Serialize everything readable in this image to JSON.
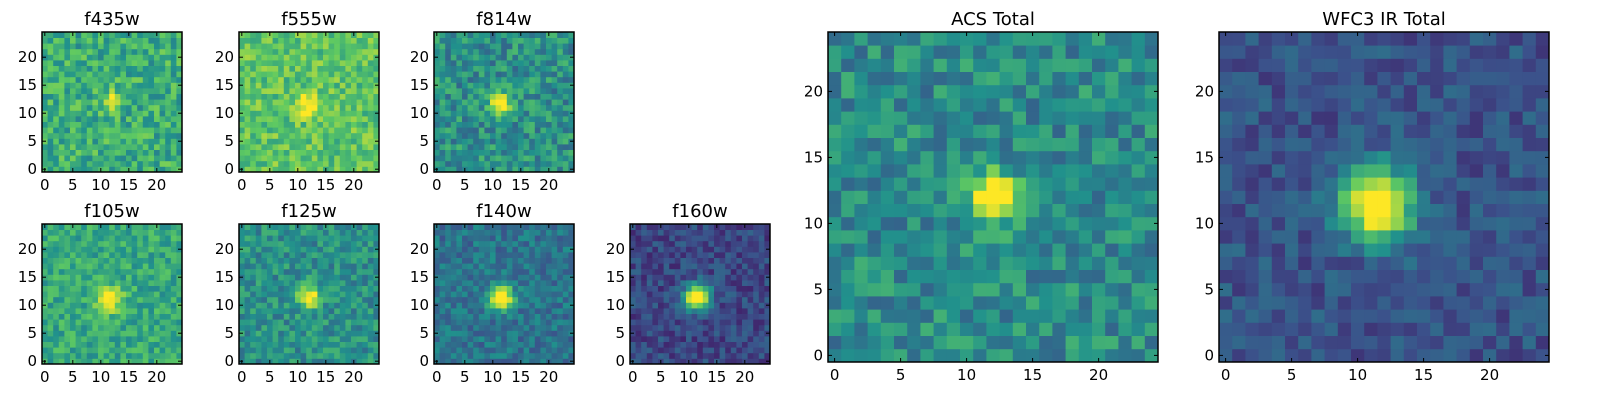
{
  "figure": {
    "colormap": "viridis",
    "colormap_stops": [
      "#440154",
      "#3b528b",
      "#21918c",
      "#5ec962",
      "#fde725"
    ],
    "frame_color": "#000000",
    "background": "#ffffff"
  },
  "chart_data": [
    {
      "type": "heatmap",
      "title": "f435w",
      "grid": [
        25,
        25
      ],
      "xlim": [
        0,
        25
      ],
      "ylim": [
        0,
        25
      ],
      "xticks": [
        "0",
        "5",
        "10",
        "15",
        "20"
      ],
      "yticks": [
        "0",
        "5",
        "10",
        "15",
        "20"
      ],
      "source_center": [
        12.5,
        12.5
      ],
      "peak_value": 1.0,
      "background_level": 0.62,
      "noise_level": 0.35,
      "source_sigma": 1.2
    },
    {
      "type": "heatmap",
      "title": "f555w",
      "grid": [
        25,
        25
      ],
      "xlim": [
        0,
        25
      ],
      "ylim": [
        0,
        25
      ],
      "xticks": [
        "0",
        "5",
        "10",
        "15",
        "20"
      ],
      "yticks": [
        "0",
        "5",
        "10",
        "15",
        "20"
      ],
      "source_center": [
        12.0,
        12.0
      ],
      "peak_value": 1.0,
      "background_level": 0.72,
      "noise_level": 0.3,
      "source_sigma": 1.4
    },
    {
      "type": "heatmap",
      "title": "f814w",
      "grid": [
        25,
        25
      ],
      "xlim": [
        0,
        25
      ],
      "ylim": [
        0,
        25
      ],
      "xticks": [
        "0",
        "5",
        "10",
        "15",
        "20"
      ],
      "yticks": [
        "0",
        "5",
        "10",
        "15",
        "20"
      ],
      "source_center": [
        12.0,
        12.0
      ],
      "peak_value": 1.0,
      "background_level": 0.5,
      "noise_level": 0.35,
      "source_sigma": 1.3
    },
    {
      "type": "heatmap",
      "title": "f105w",
      "grid": [
        25,
        25
      ],
      "xlim": [
        0,
        25
      ],
      "ylim": [
        0,
        25
      ],
      "xticks": [
        "0",
        "5",
        "10",
        "15",
        "20"
      ],
      "yticks": [
        "0",
        "5",
        "10",
        "15",
        "20"
      ],
      "source_center": [
        12.0,
        11.5
      ],
      "peak_value": 1.0,
      "background_level": 0.6,
      "noise_level": 0.28,
      "source_sigma": 1.6
    },
    {
      "type": "heatmap",
      "title": "f125w",
      "grid": [
        25,
        25
      ],
      "xlim": [
        0,
        25
      ],
      "ylim": [
        0,
        25
      ],
      "xticks": [
        "0",
        "5",
        "10",
        "15",
        "20"
      ],
      "yticks": [
        "0",
        "5",
        "10",
        "15",
        "20"
      ],
      "source_center": [
        12.5,
        12.0
      ],
      "peak_value": 1.0,
      "background_level": 0.5,
      "noise_level": 0.3,
      "source_sigma": 1.4
    },
    {
      "type": "heatmap",
      "title": "f140w",
      "grid": [
        25,
        25
      ],
      "xlim": [
        0,
        25
      ],
      "ylim": [
        0,
        25
      ],
      "xticks": [
        "0",
        "5",
        "10",
        "15",
        "20"
      ],
      "yticks": [
        "0",
        "5",
        "10",
        "15",
        "20"
      ],
      "source_center": [
        12.0,
        12.0
      ],
      "peak_value": 1.0,
      "background_level": 0.38,
      "noise_level": 0.25,
      "source_sigma": 1.5
    },
    {
      "type": "heatmap",
      "title": "f160w",
      "grid": [
        25,
        25
      ],
      "xlim": [
        0,
        25
      ],
      "ylim": [
        0,
        25
      ],
      "xticks": [
        "0",
        "5",
        "10",
        "15",
        "20"
      ],
      "yticks": [
        "0",
        "5",
        "10",
        "15",
        "20"
      ],
      "source_center": [
        12.0,
        12.0
      ],
      "peak_value": 1.0,
      "background_level": 0.22,
      "noise_level": 0.22,
      "source_sigma": 1.6
    },
    {
      "type": "heatmap",
      "title": "ACS Total",
      "grid": [
        25,
        25
      ],
      "xlim": [
        0,
        25
      ],
      "ylim": [
        0,
        25
      ],
      "xticks": [
        "0",
        "5",
        "10",
        "15",
        "20"
      ],
      "yticks": [
        "0",
        "5",
        "10",
        "15",
        "20"
      ],
      "source_center": [
        12.5,
        12.5
      ],
      "peak_value": 1.0,
      "background_level": 0.48,
      "noise_level": 0.32,
      "source_sigma": 1.3
    },
    {
      "type": "heatmap",
      "title": "WFC3 IR Total",
      "grid": [
        25,
        25
      ],
      "xlim": [
        0,
        25
      ],
      "ylim": [
        0,
        25
      ],
      "xticks": [
        "0",
        "5",
        "10",
        "15",
        "20"
      ],
      "yticks": [
        "0",
        "5",
        "10",
        "15",
        "20"
      ],
      "source_center": [
        12.0,
        12.0
      ],
      "peak_value": 1.0,
      "background_level": 0.26,
      "noise_level": 0.2,
      "source_sigma": 1.9
    }
  ]
}
